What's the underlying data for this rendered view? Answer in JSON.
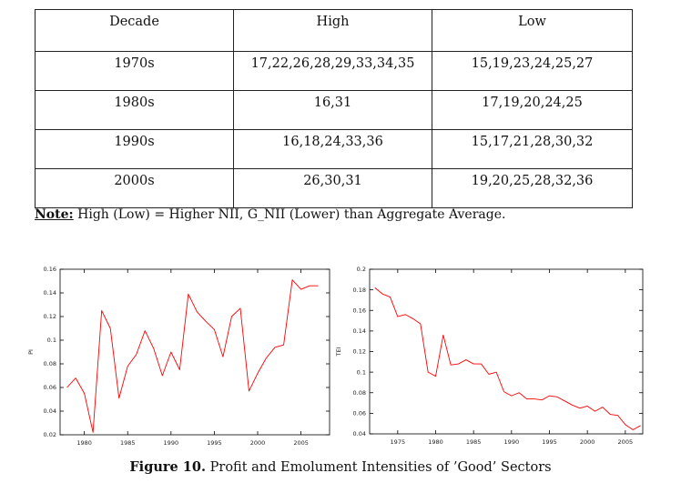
{
  "table": {
    "headers": [
      "Decade",
      "High",
      "Low"
    ],
    "rows": [
      [
        "1970s",
        "17,22,26,28,29,33,34,35",
        "15,19,23,24,25,27"
      ],
      [
        "1980s",
        "16,31",
        "17,19,20,24,25"
      ],
      [
        "1990s",
        "16,18,24,33,36",
        "15,17,21,28,30,32"
      ],
      [
        "2000s",
        "26,30,31",
        "19,20,25,28,32,36"
      ]
    ]
  },
  "note": {
    "label": "Note:",
    "text": " High (Low) = Higher NII, G_NII (Lower) than Aggregate Average."
  },
  "caption": {
    "label": "Figure 10.",
    "text": " Profit and Emolument Intensities of ’Good’ Sectors"
  },
  "colors": {
    "series": "#ff0000",
    "axis": "#000000"
  },
  "chart_data": [
    {
      "type": "line",
      "title": "",
      "xlabel": "",
      "ylabel": "PI",
      "xlim": [
        1977.2,
        2008.3
      ],
      "ylim": [
        0.02,
        0.16
      ],
      "xticks": [
        1980,
        1985,
        1990,
        1995,
        2000,
        2005
      ],
      "yticks": [
        0.02,
        0.04,
        0.06,
        0.08,
        0.1,
        0.12,
        0.14,
        0.16
      ],
      "ytick_labels": [
        "0.02",
        "0.04",
        "0.06",
        "0.08",
        "0.1",
        "0.12",
        "0.14",
        "0.16"
      ],
      "series": [
        {
          "x": [
            1978,
            1979,
            1980,
            1981,
            1982,
            1983,
            1984,
            1985,
            1986,
            1987,
            1988,
            1989,
            1990,
            1991,
            1992,
            1993,
            1994,
            1995,
            1996,
            1997,
            1998,
            1999,
            2000,
            2001,
            2002,
            2003,
            2004,
            2005,
            2006,
            2007
          ],
          "values": [
            0.06,
            0.068,
            0.055,
            0.022,
            0.125,
            0.11,
            0.051,
            0.078,
            0.088,
            0.108,
            0.093,
            0.07,
            0.09,
            0.075,
            0.139,
            0.124,
            0.116,
            0.109,
            0.086,
            0.12,
            0.127,
            0.057,
            0.072,
            0.085,
            0.094,
            0.096,
            0.151,
            0.143,
            0.146,
            0.146
          ]
        }
      ]
    },
    {
      "type": "line",
      "title": "",
      "xlabel": "",
      "ylabel": "TEI",
      "xlim": [
        1971.3,
        2007.3
      ],
      "ylim": [
        0.04,
        0.2
      ],
      "xticks": [
        1975,
        1980,
        1985,
        1990,
        1995,
        2000,
        2005
      ],
      "yticks": [
        0.04,
        0.06,
        0.08,
        0.1,
        0.12,
        0.14,
        0.16,
        0.18,
        0.2
      ],
      "ytick_labels": [
        "0.04",
        "0.06",
        "0.08",
        "0.1",
        "0.12",
        "0.14",
        "0.16",
        "0.18",
        "0.2"
      ],
      "series": [
        {
          "x": [
            1972,
            1973,
            1974,
            1975,
            1976,
            1977,
            1978,
            1979,
            1980,
            1981,
            1982,
            1983,
            1984,
            1985,
            1986,
            1987,
            1988,
            1989,
            1990,
            1991,
            1992,
            1993,
            1994,
            1995,
            1996,
            1997,
            1998,
            1999,
            2000,
            2001,
            2002,
            2003,
            2004,
            2005,
            2006,
            2007
          ],
          "values": [
            0.182,
            0.176,
            0.173,
            0.154,
            0.156,
            0.152,
            0.147,
            0.1,
            0.096,
            0.136,
            0.107,
            0.108,
            0.112,
            0.108,
            0.108,
            0.098,
            0.1,
            0.081,
            0.077,
            0.08,
            0.074,
            0.074,
            0.073,
            0.077,
            0.076,
            0.072,
            0.068,
            0.065,
            0.067,
            0.062,
            0.066,
            0.059,
            0.058,
            0.049,
            0.044,
            0.048
          ]
        }
      ]
    }
  ]
}
